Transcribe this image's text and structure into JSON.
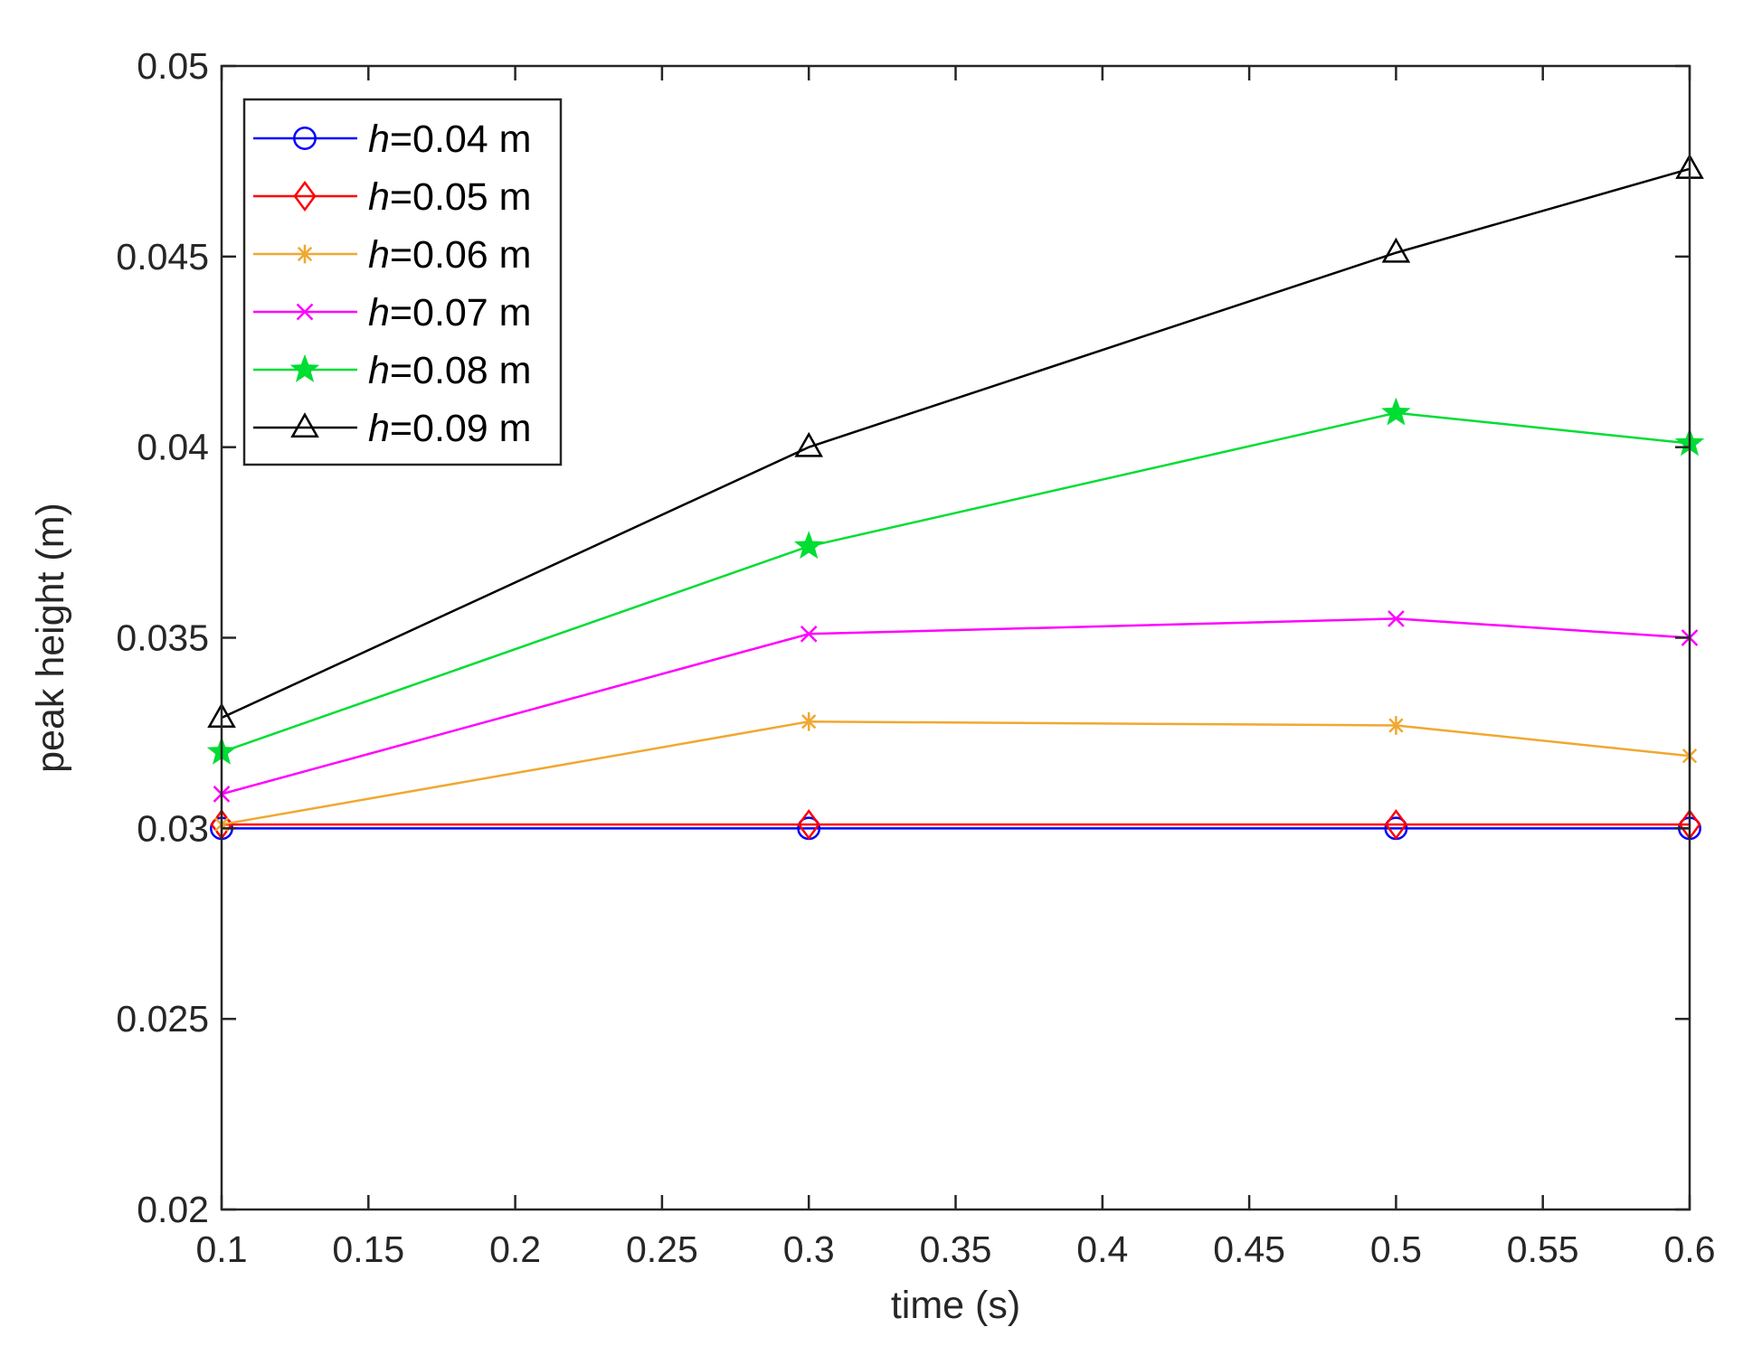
{
  "chart_data": {
    "type": "line",
    "title": "",
    "xlabel": "time (s)",
    "ylabel": "peak height (m)",
    "xlim": [
      0.1,
      0.6
    ],
    "ylim": [
      0.02,
      0.05
    ],
    "xticks": [
      "0.1",
      "0.15",
      "0.2",
      "0.25",
      "0.3",
      "0.35",
      "0.4",
      "0.45",
      "0.5",
      "0.55",
      "0.6"
    ],
    "yticks": [
      "0.02",
      "0.025",
      "0.03",
      "0.035",
      "0.04",
      "0.045",
      "0.05"
    ],
    "grid": false,
    "legend_position": "top-left",
    "x": [
      0.1,
      0.3,
      0.5,
      0.6
    ],
    "series": [
      {
        "name_var": "h",
        "name_rest": "=0.04 m",
        "color": "#0000ff",
        "marker": "circle",
        "values": [
          0.03,
          0.03,
          0.03,
          0.03
        ]
      },
      {
        "name_var": "h",
        "name_rest": "=0.05 m",
        "color": "#ff0000",
        "marker": "diamond",
        "values": [
          0.0301,
          0.0301,
          0.0301,
          0.0301
        ]
      },
      {
        "name_var": "h",
        "name_rest": "=0.06 m",
        "color": "#f0a830",
        "marker": "asterisk",
        "values": [
          0.0301,
          0.0328,
          0.0327,
          0.0319
        ]
      },
      {
        "name_var": "h",
        "name_rest": "=0.07 m",
        "color": "#ff00ff",
        "marker": "x",
        "values": [
          0.0309,
          0.0351,
          0.0355,
          0.035
        ]
      },
      {
        "name_var": "h",
        "name_rest": "=0.08 m",
        "color": "#00dd33",
        "marker": "star",
        "values": [
          0.032,
          0.0374,
          0.0409,
          0.0401
        ]
      },
      {
        "name_var": "h",
        "name_rest": "=0.09 m",
        "color": "#000000",
        "marker": "triangle",
        "values": [
          0.0329,
          0.04,
          0.0451,
          0.0473
        ]
      }
    ]
  }
}
